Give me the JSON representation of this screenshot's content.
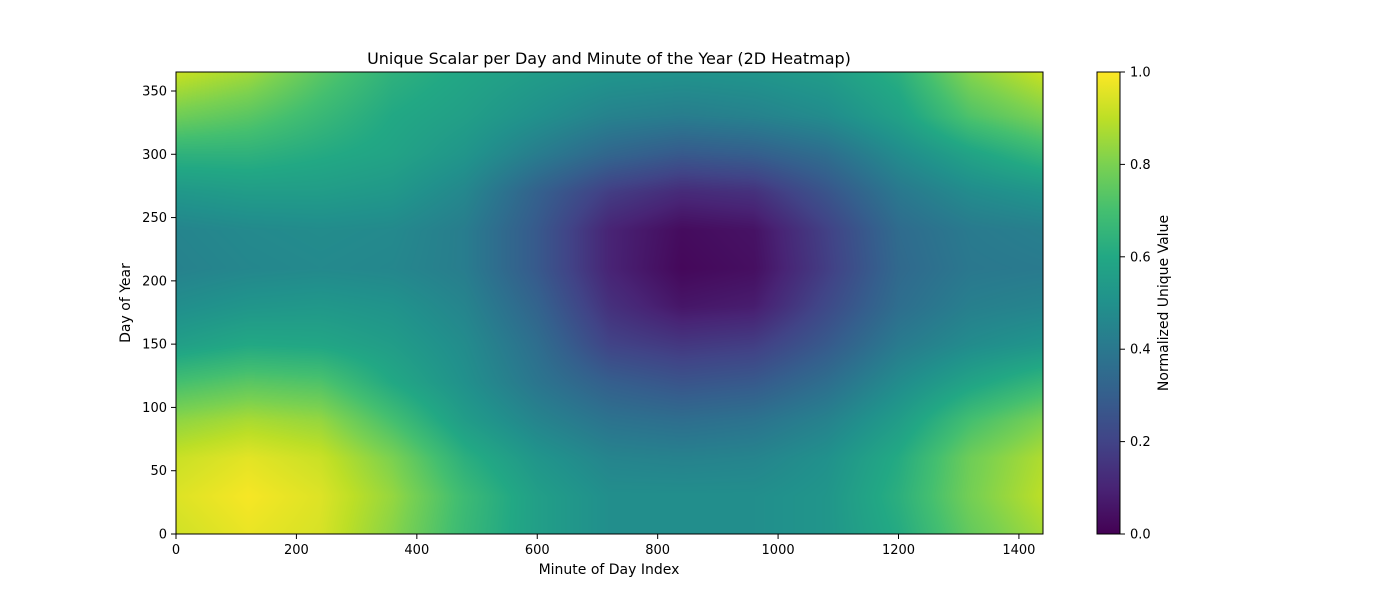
{
  "chart_data": {
    "type": "heatmap",
    "title": "Unique Scalar per Day and Minute of the Year (2D Heatmap)",
    "xlabel": "Minute of Day Index",
    "ylabel": "Day of Year",
    "xlim": [
      0,
      1440
    ],
    "ylim": [
      0,
      365
    ],
    "xticks": [
      0,
      200,
      400,
      600,
      800,
      1000,
      1200,
      1400
    ],
    "yticks": [
      0,
      50,
      100,
      150,
      200,
      250,
      300,
      350
    ],
    "colorbar": {
      "label": "Normalized Unique Value",
      "range": [
        0.0,
        1.0
      ],
      "ticks": [
        "0.0",
        "0.2",
        "0.4",
        "0.6",
        "0.8",
        "1.0"
      ],
      "colormap": "viridis"
    },
    "grid": false,
    "x": [
      0,
      120,
      240,
      360,
      480,
      600,
      720,
      840,
      960,
      1080,
      1200,
      1320,
      1440
    ],
    "y": [
      0,
      30,
      60,
      90,
      120,
      150,
      180,
      210,
      240,
      270,
      300,
      330,
      365
    ],
    "z": [
      [
        0.93,
        0.97,
        0.94,
        0.82,
        0.67,
        0.56,
        0.49,
        0.49,
        0.49,
        0.52,
        0.61,
        0.76,
        0.86
      ],
      [
        0.95,
        0.99,
        0.95,
        0.84,
        0.68,
        0.56,
        0.49,
        0.49,
        0.49,
        0.52,
        0.63,
        0.79,
        0.9
      ],
      [
        0.92,
        0.96,
        0.92,
        0.8,
        0.63,
        0.52,
        0.45,
        0.44,
        0.45,
        0.5,
        0.61,
        0.78,
        0.88
      ],
      [
        0.83,
        0.87,
        0.84,
        0.7,
        0.55,
        0.45,
        0.38,
        0.36,
        0.38,
        0.44,
        0.55,
        0.7,
        0.8
      ],
      [
        0.7,
        0.74,
        0.72,
        0.6,
        0.5,
        0.39,
        0.3,
        0.26,
        0.28,
        0.36,
        0.48,
        0.58,
        0.66
      ],
      [
        0.56,
        0.6,
        0.59,
        0.55,
        0.48,
        0.36,
        0.2,
        0.16,
        0.18,
        0.28,
        0.41,
        0.48,
        0.52
      ],
      [
        0.49,
        0.52,
        0.53,
        0.51,
        0.45,
        0.32,
        0.14,
        0.06,
        0.08,
        0.22,
        0.36,
        0.43,
        0.45
      ],
      [
        0.44,
        0.46,
        0.47,
        0.46,
        0.42,
        0.28,
        0.1,
        0.02,
        0.04,
        0.18,
        0.34,
        0.4,
        0.41
      ],
      [
        0.45,
        0.47,
        0.48,
        0.47,
        0.42,
        0.28,
        0.1,
        0.03,
        0.05,
        0.19,
        0.35,
        0.41,
        0.43
      ],
      [
        0.53,
        0.55,
        0.55,
        0.53,
        0.46,
        0.31,
        0.18,
        0.12,
        0.14,
        0.26,
        0.4,
        0.48,
        0.52
      ],
      [
        0.64,
        0.64,
        0.61,
        0.58,
        0.52,
        0.42,
        0.33,
        0.28,
        0.3,
        0.36,
        0.48,
        0.58,
        0.66
      ],
      [
        0.78,
        0.74,
        0.67,
        0.6,
        0.56,
        0.5,
        0.44,
        0.42,
        0.44,
        0.48,
        0.57,
        0.72,
        0.8
      ],
      [
        0.92,
        0.86,
        0.74,
        0.64,
        0.59,
        0.55,
        0.52,
        0.51,
        0.52,
        0.55,
        0.63,
        0.82,
        0.92
      ]
    ]
  }
}
